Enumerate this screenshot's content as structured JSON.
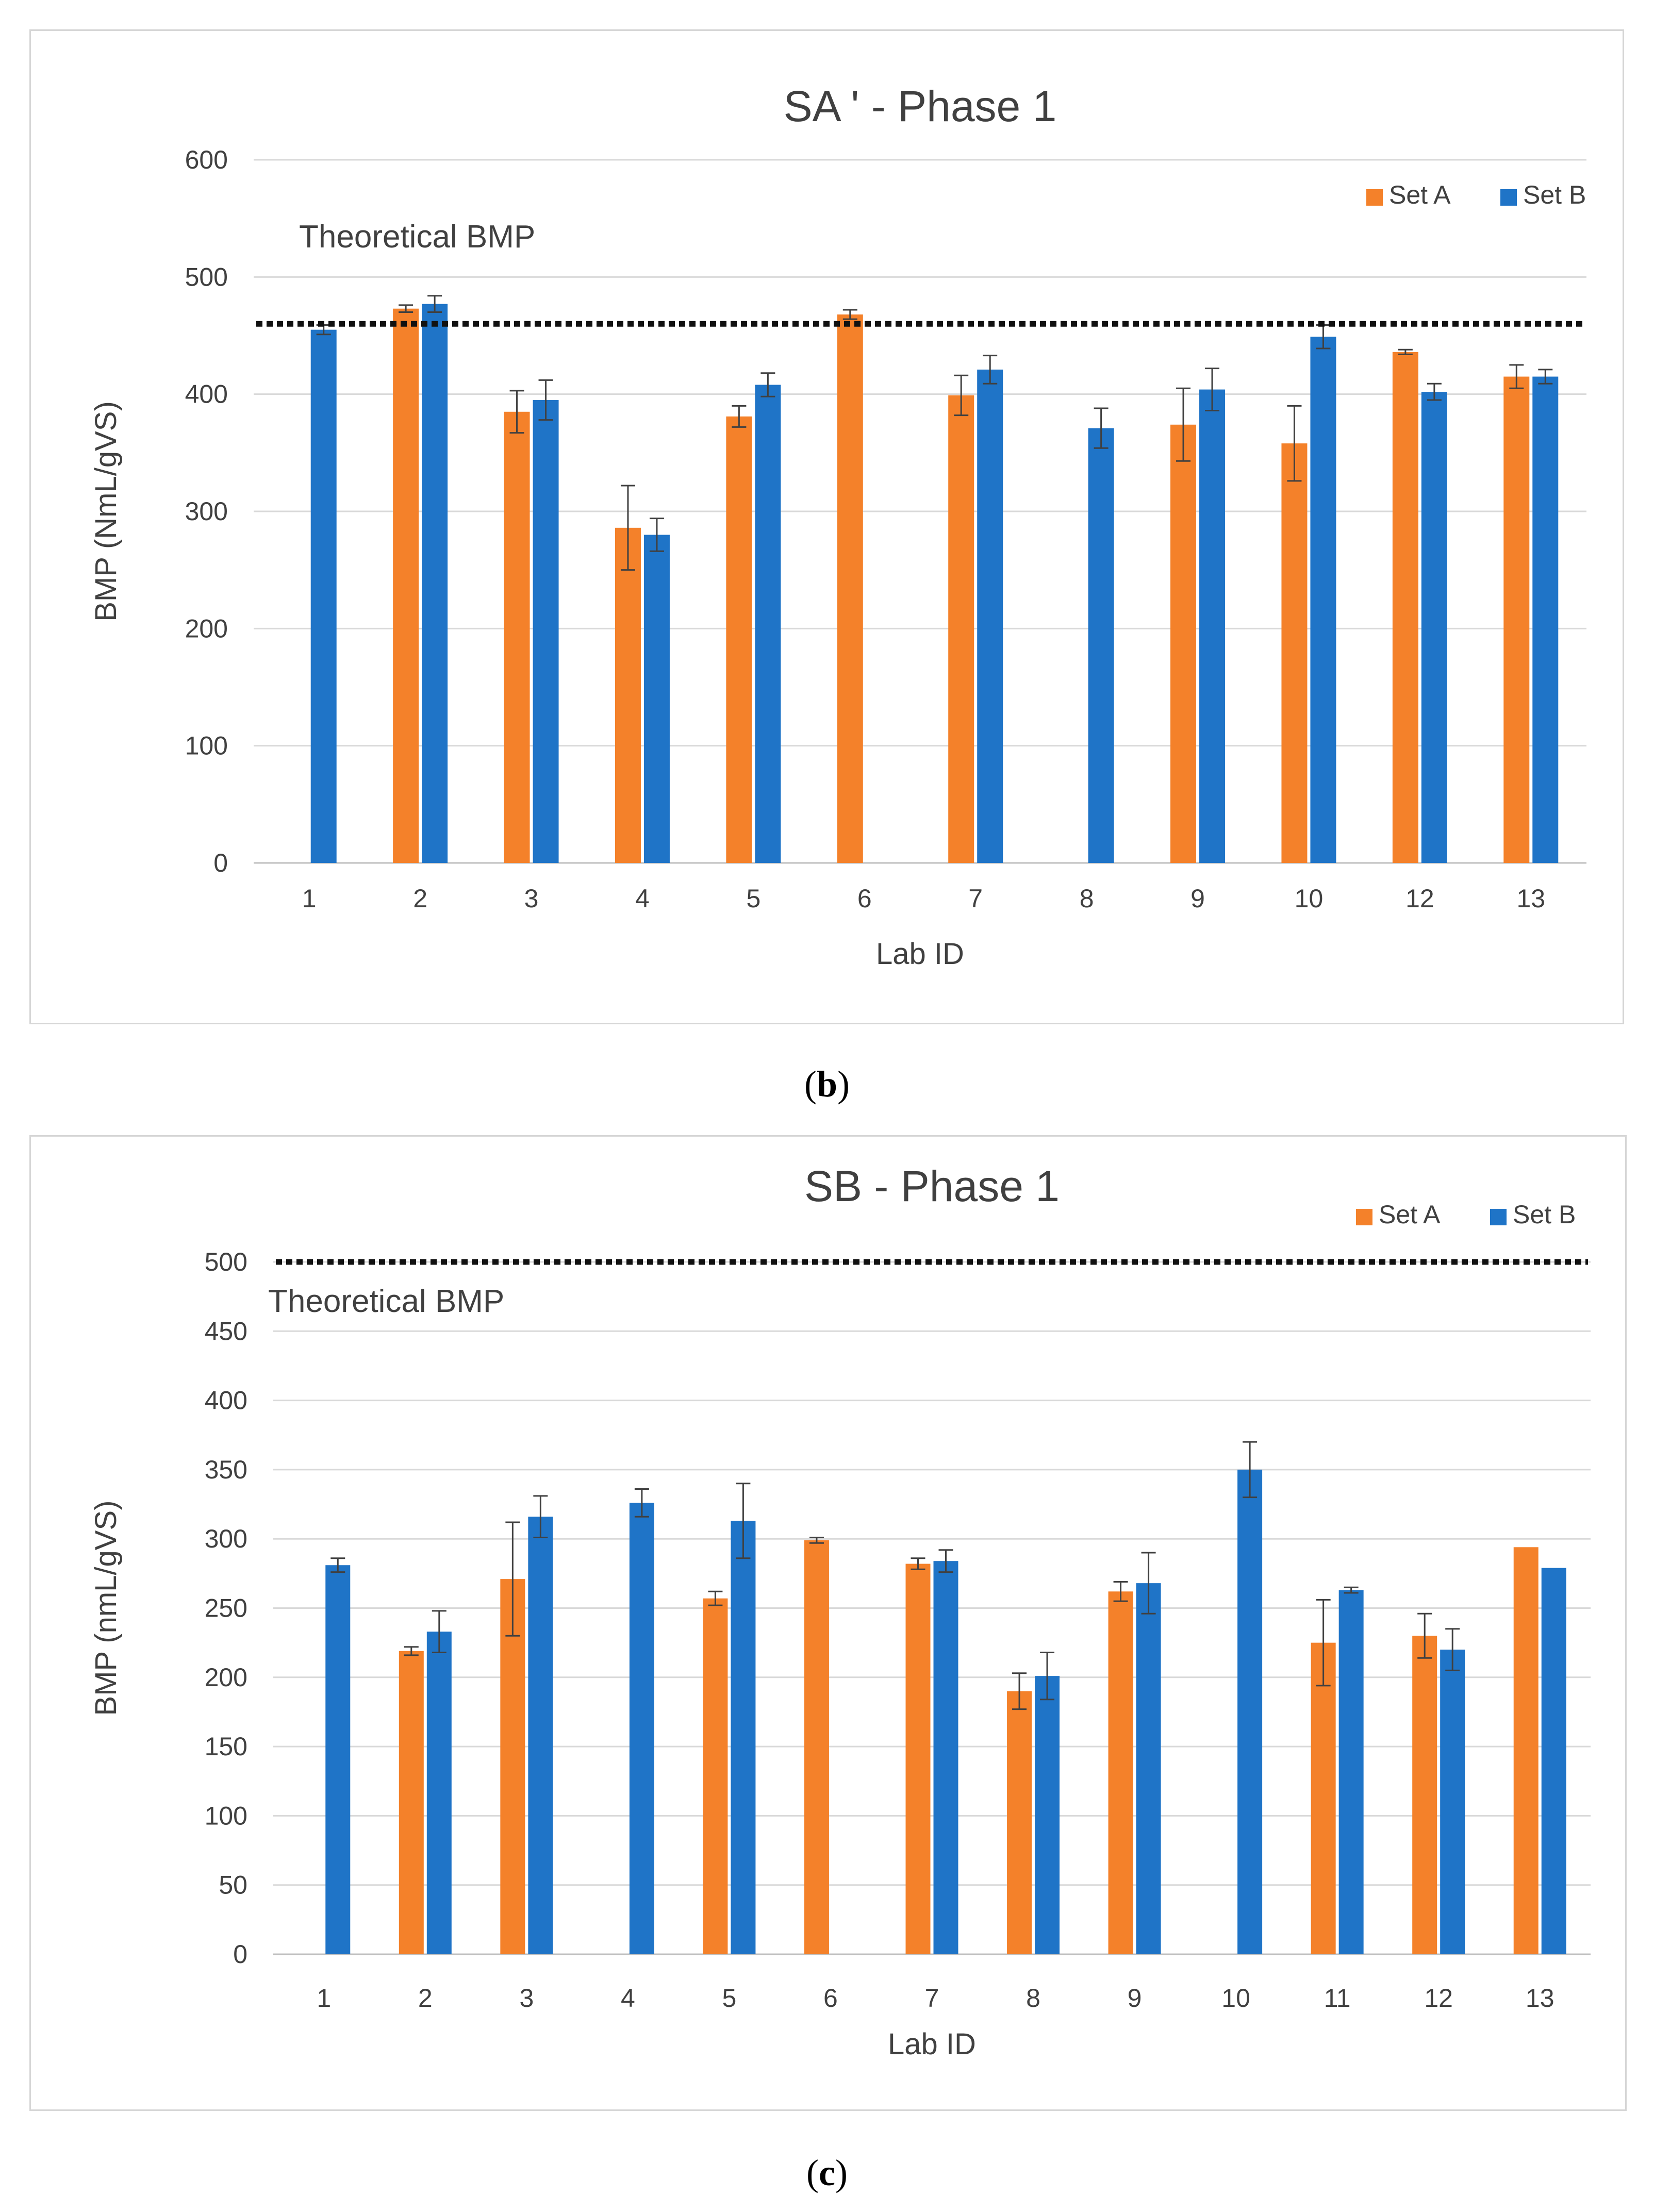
{
  "colors": {
    "set_a": "#F4812A",
    "set_b": "#1F74C7",
    "grid": "#d9d9d9",
    "theory_line": "#111111",
    "text": "#404040"
  },
  "captions": {
    "b_label": "b",
    "c_label": "c"
  },
  "chart_data": [
    {
      "id": "b",
      "type": "bar",
      "title": "SA ' - Phase 1",
      "xlabel": "Lab ID",
      "ylabel": "BMP (NmL/gVS)",
      "ylim": [
        0,
        600
      ],
      "yticks": [
        0,
        100,
        200,
        300,
        400,
        500,
        600
      ],
      "grid": true,
      "legend_position": "top-right",
      "annotation": "Theoretical BMP",
      "reference_line": 460,
      "categories": [
        "1",
        "2",
        "3",
        "4",
        "5",
        "6",
        "7",
        "8",
        "9",
        "10",
        "12",
        "13"
      ],
      "series": [
        {
          "name": "Set A",
          "color_key": "set_a",
          "values": [
            null,
            473,
            385,
            286,
            381,
            468,
            399,
            null,
            374,
            358,
            436,
            415
          ],
          "errors": [
            null,
            3,
            18,
            36,
            9,
            4,
            17,
            null,
            31,
            32,
            2,
            10
          ]
        },
        {
          "name": "Set B",
          "color_key": "set_b",
          "values": [
            455,
            477,
            395,
            280,
            408,
            null,
            421,
            371,
            404,
            449,
            402,
            415
          ],
          "errors": [
            4,
            7,
            17,
            14,
            10,
            null,
            12,
            17,
            18,
            10,
            7,
            6
          ]
        }
      ]
    },
    {
      "id": "c",
      "type": "bar",
      "title": "SB - Phase 1",
      "xlabel": "Lab ID",
      "ylabel": "BMP (nmL/gVS)",
      "ylim": [
        0,
        500
      ],
      "yticks": [
        0,
        50,
        100,
        150,
        200,
        250,
        300,
        350,
        400,
        450,
        500
      ],
      "grid": true,
      "legend_position": "top-right",
      "annotation": "Theoretical BMP",
      "reference_line": 500,
      "categories": [
        "1",
        "2",
        "3",
        "4",
        "5",
        "6",
        "7",
        "8",
        "9",
        "10",
        "11",
        "12",
        "13"
      ],
      "series": [
        {
          "name": "Set A",
          "color_key": "set_a",
          "values": [
            null,
            219,
            271,
            null,
            257,
            299,
            282,
            190,
            262,
            null,
            225,
            230,
            294
          ],
          "errors": [
            null,
            3,
            41,
            null,
            5,
            2,
            4,
            13,
            7,
            null,
            31,
            16,
            null
          ]
        },
        {
          "name": "Set B",
          "color_key": "set_b",
          "values": [
            281,
            233,
            316,
            326,
            313,
            null,
            284,
            201,
            268,
            350,
            263,
            220,
            279
          ],
          "errors": [
            5,
            15,
            15,
            10,
            27,
            null,
            8,
            17,
            22,
            20,
            2,
            15,
            null
          ]
        }
      ]
    }
  ]
}
